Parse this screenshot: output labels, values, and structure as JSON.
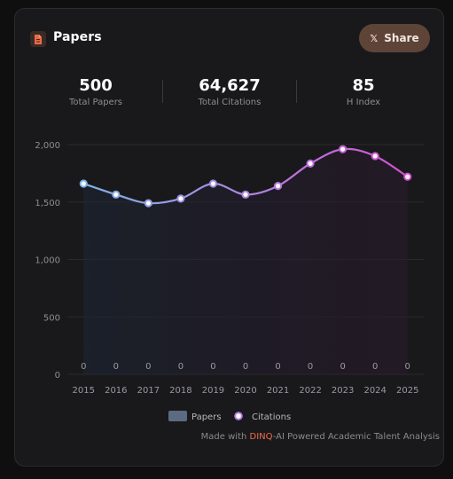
{
  "header": {
    "title": "Papers",
    "share_label": "Share"
  },
  "stats": [
    {
      "value": "500",
      "label": "Total Papers"
    },
    {
      "value": "64,627",
      "label": "Total Citations"
    },
    {
      "value": "85",
      "label": "H Index"
    }
  ],
  "chart_data": {
    "type": "bar",
    "categories": [
      "2015",
      "2016",
      "2017",
      "2018",
      "2019",
      "2020",
      "2021",
      "2022",
      "2023",
      "2024",
      "2025"
    ],
    "ylim": [
      0,
      2000
    ],
    "yticks": [
      "0",
      "500",
      "1,000",
      "1,500",
      "2,000"
    ],
    "series": [
      {
        "name": "Papers",
        "type": "bar",
        "values": [
          0,
          0,
          0,
          0,
          0,
          0,
          0,
          0,
          0,
          0,
          0
        ]
      },
      {
        "name": "Citations",
        "type": "line",
        "values": [
          1660,
          1565,
          1490,
          1530,
          1660,
          1565,
          1640,
          1835,
          1960,
          1900,
          1720
        ]
      }
    ],
    "legend": "bottom",
    "grid": true
  },
  "colors": {
    "accent": "#ef6b4a",
    "line_start": "#7fb0e6",
    "line_end": "#d64fd4",
    "paper_legend": "#5d6b82"
  },
  "footer": {
    "prefix": "Made with ",
    "brand": "DINQ",
    "suffix": "-AI Powered Academic Talent Analysis"
  }
}
